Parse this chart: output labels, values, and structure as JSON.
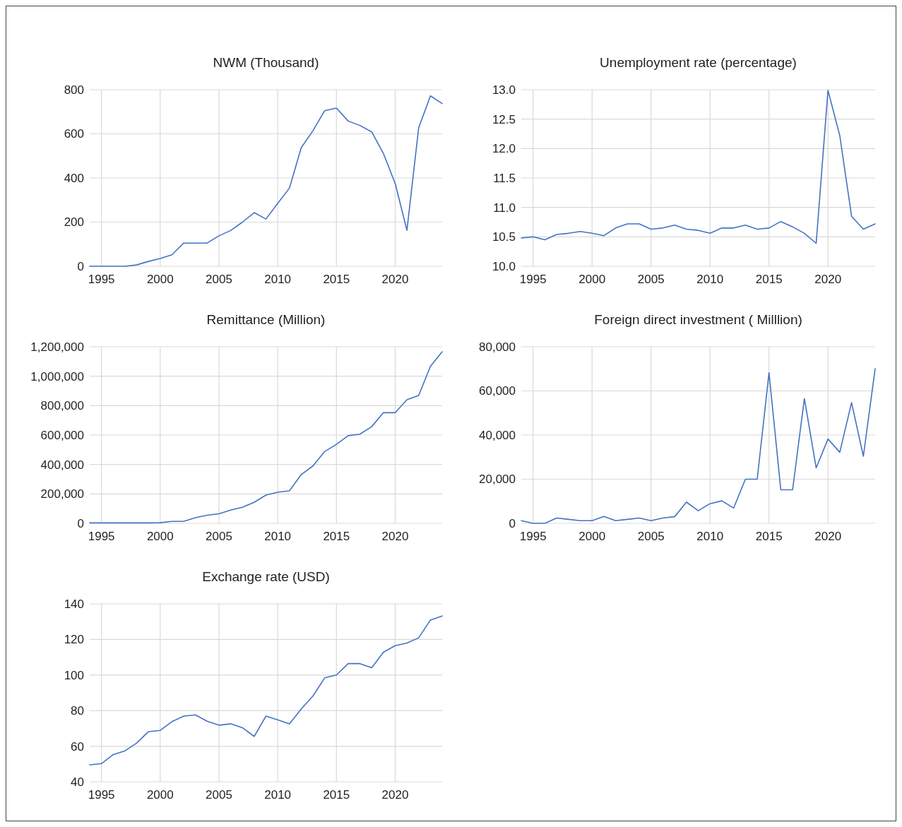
{
  "chart_data": [
    {
      "type": "line",
      "title": "NWM (Thousand)",
      "color": "#4472c4",
      "grid": true,
      "xlim": [
        1994,
        2024
      ],
      "xticks": [
        1995,
        2000,
        2005,
        2010,
        2015,
        2020
      ],
      "ylim": [
        0,
        800
      ],
      "yticks": [
        0,
        200,
        400,
        600,
        800
      ],
      "x": [
        1994,
        1995,
        1996,
        1997,
        1998,
        1999,
        2000,
        2001,
        2002,
        2003,
        2004,
        2005,
        2006,
        2007,
        2008,
        2009,
        2010,
        2011,
        2012,
        2013,
        2014,
        2015,
        2016,
        2017,
        2018,
        2019,
        2020,
        2021,
        2022,
        2023,
        2024
      ],
      "values": [
        0,
        0,
        0,
        0,
        6,
        22,
        35,
        52,
        105,
        105,
        105,
        138,
        162,
        200,
        243,
        214,
        285,
        354,
        537,
        614,
        705,
        717,
        658,
        638,
        609,
        511,
        375,
        163,
        627,
        772,
        737
      ]
    },
    {
      "type": "line",
      "title": "Unemployment rate (percentage)",
      "color": "#4472c4",
      "grid": true,
      "xlim": [
        1994,
        2024
      ],
      "xticks": [
        1995,
        2000,
        2005,
        2010,
        2015,
        2020
      ],
      "ylim": [
        10,
        13
      ],
      "yticks": [
        {
          "value": 10,
          "label": "10.0"
        },
        {
          "value": 10.5,
          "label": "10.5"
        },
        {
          "value": 11,
          "label": "11.0"
        },
        {
          "value": 11.5,
          "label": "11.5"
        },
        {
          "value": 12,
          "label": "12.0"
        },
        {
          "value": 12.5,
          "label": "12.5"
        },
        {
          "value": 13,
          "label": "13.0"
        }
      ],
      "x": [
        1994,
        1995,
        1996,
        1997,
        1998,
        1999,
        2000,
        2001,
        2002,
        2003,
        2004,
        2005,
        2006,
        2007,
        2008,
        2009,
        2010,
        2011,
        2012,
        2013,
        2014,
        2015,
        2016,
        2017,
        2018,
        2019,
        2020,
        2021,
        2022,
        2023,
        2024
      ],
      "values": [
        10.48,
        10.5,
        10.45,
        10.54,
        10.56,
        10.59,
        10.56,
        10.52,
        10.65,
        10.72,
        10.72,
        10.63,
        10.65,
        10.7,
        10.63,
        10.61,
        10.56,
        10.65,
        10.65,
        10.7,
        10.63,
        10.65,
        10.76,
        10.67,
        10.56,
        10.39,
        12.99,
        12.22,
        10.85,
        10.63,
        10.72
      ]
    },
    {
      "type": "line",
      "title": "Remittance (Million)",
      "color": "#4472c4",
      "grid": true,
      "xlim": [
        1994,
        2024
      ],
      "xticks": [
        1995,
        2000,
        2005,
        2010,
        2015,
        2020
      ],
      "ylim": [
        0,
        1200000
      ],
      "yticks": [
        0,
        {
          "value": 200000,
          "label": "200,000"
        },
        {
          "value": 400000,
          "label": "400,000"
        },
        {
          "value": 600000,
          "label": "600,000"
        },
        {
          "value": 800000,
          "label": "800,000"
        },
        {
          "value": 1000000,
          "label": "1,000,000"
        },
        {
          "value": 1200000,
          "label": "1,200,000"
        }
      ],
      "x": [
        1994,
        1995,
        1996,
        1997,
        1998,
        1999,
        2000,
        2001,
        2002,
        2003,
        2004,
        2005,
        2006,
        2007,
        2008,
        2009,
        2010,
        2011,
        2012,
        2013,
        2014,
        2015,
        2016,
        2017,
        2018,
        2019,
        2020,
        2021,
        2022,
        2023,
        2024
      ],
      "values": [
        3000,
        3000,
        3000,
        3000,
        3000,
        3000,
        4000,
        13000,
        13000,
        38000,
        55000,
        65000,
        90000,
        109000,
        143000,
        192000,
        211000,
        221000,
        331000,
        390000,
        488000,
        537000,
        596000,
        606000,
        657000,
        752000,
        752000,
        840000,
        869000,
        1067000,
        1166000
      ]
    },
    {
      "type": "line",
      "title": "Foreign direct investment ( Milllion)",
      "color": "#4472c4",
      "grid": true,
      "xlim": [
        1994,
        2024
      ],
      "xticks": [
        1995,
        2000,
        2005,
        2010,
        2015,
        2020
      ],
      "ylim": [
        0,
        80000
      ],
      "yticks": [
        0,
        {
          "value": 20000,
          "label": "20,000"
        },
        {
          "value": 40000,
          "label": "40,000"
        },
        {
          "value": 60000,
          "label": "60,000"
        },
        {
          "value": 80000,
          "label": "80,000"
        }
      ],
      "x": [
        1994,
        1995,
        1996,
        1997,
        1998,
        1999,
        2000,
        2001,
        2002,
        2003,
        2004,
        2005,
        2006,
        2007,
        2008,
        2009,
        2010,
        2011,
        2012,
        2013,
        2014,
        2015,
        2016,
        2017,
        2018,
        2019,
        2020,
        2021,
        2022,
        2023,
        2024
      ],
      "values": [
        1200,
        0,
        0,
        2400,
        1800,
        1200,
        1200,
        3100,
        1200,
        1800,
        2400,
        1200,
        2400,
        3000,
        9600,
        5700,
        8900,
        10200,
        6900,
        20000,
        20000,
        68200,
        15200,
        15200,
        56500,
        25100,
        38200,
        32200,
        54700,
        30400,
        70100
      ]
    },
    {
      "type": "line",
      "title": "Exchange rate (USD)",
      "color": "#4472c4",
      "grid": true,
      "xlim": [
        1994,
        2024
      ],
      "xticks": [
        1995,
        2000,
        2005,
        2010,
        2015,
        2020
      ],
      "ylim": [
        40,
        140
      ],
      "yticks": [
        40,
        60,
        80,
        100,
        120,
        140
      ],
      "x": [
        1994,
        1995,
        1996,
        1997,
        1998,
        1999,
        2000,
        2001,
        2002,
        2003,
        2004,
        2005,
        2006,
        2007,
        2008,
        2009,
        2010,
        2011,
        2012,
        2013,
        2014,
        2015,
        2016,
        2017,
        2018,
        2019,
        2020,
        2021,
        2022,
        2023,
        2024
      ],
      "values": [
        49.5,
        50.2,
        55.3,
        57.4,
        61.8,
        68.2,
        68.9,
        73.8,
        76.9,
        77.6,
        74,
        71.8,
        72.6,
        70.4,
        65.5,
        76.9,
        74.8,
        72.5,
        80.9,
        88.2,
        98.4,
        100,
        106.4,
        106.4,
        104.1,
        112.8,
        116.5,
        118,
        120.9,
        130.9,
        133.2
      ]
    }
  ]
}
